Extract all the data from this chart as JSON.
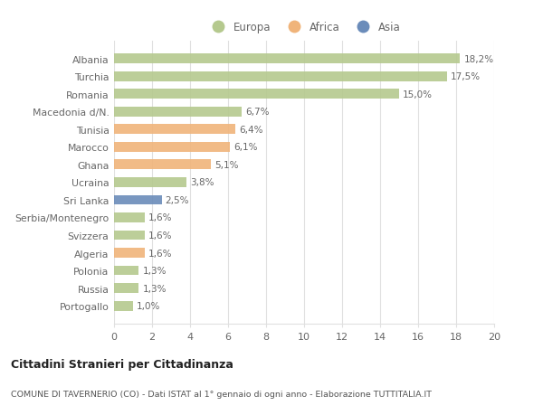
{
  "categories": [
    "Albania",
    "Turchia",
    "Romania",
    "Macedonia d/N.",
    "Tunisia",
    "Marocco",
    "Ghana",
    "Ucraina",
    "Sri Lanka",
    "Serbia/Montenegro",
    "Svizzera",
    "Algeria",
    "Polonia",
    "Russia",
    "Portogallo"
  ],
  "values": [
    18.2,
    17.5,
    15.0,
    6.7,
    6.4,
    6.1,
    5.1,
    3.8,
    2.5,
    1.6,
    1.6,
    1.6,
    1.3,
    1.3,
    1.0
  ],
  "labels": [
    "18,2%",
    "17,5%",
    "15,0%",
    "6,7%",
    "6,4%",
    "6,1%",
    "5,1%",
    "3,8%",
    "2,5%",
    "1,6%",
    "1,6%",
    "1,6%",
    "1,3%",
    "1,3%",
    "1,0%"
  ],
  "continents": [
    "Europa",
    "Europa",
    "Europa",
    "Europa",
    "Africa",
    "Africa",
    "Africa",
    "Europa",
    "Asia",
    "Europa",
    "Europa",
    "Africa",
    "Europa",
    "Europa",
    "Europa"
  ],
  "colors": {
    "Europa": "#b5c98e",
    "Africa": "#f0b47a",
    "Asia": "#6b8cba"
  },
  "xlim": [
    0,
    20
  ],
  "xticks": [
    0,
    2,
    4,
    6,
    8,
    10,
    12,
    14,
    16,
    18,
    20
  ],
  "title": "Cittadini Stranieri per Cittadinanza",
  "subtitle": "COMUNE DI TAVERNERIO (CO) - Dati ISTAT al 1° gennaio di ogni anno - Elaborazione TUTTITALIA.IT",
  "background_color": "#ffffff",
  "grid_color": "#e0e0e0",
  "bar_height": 0.55,
  "figsize": [
    6.0,
    4.6
  ],
  "dpi": 100
}
